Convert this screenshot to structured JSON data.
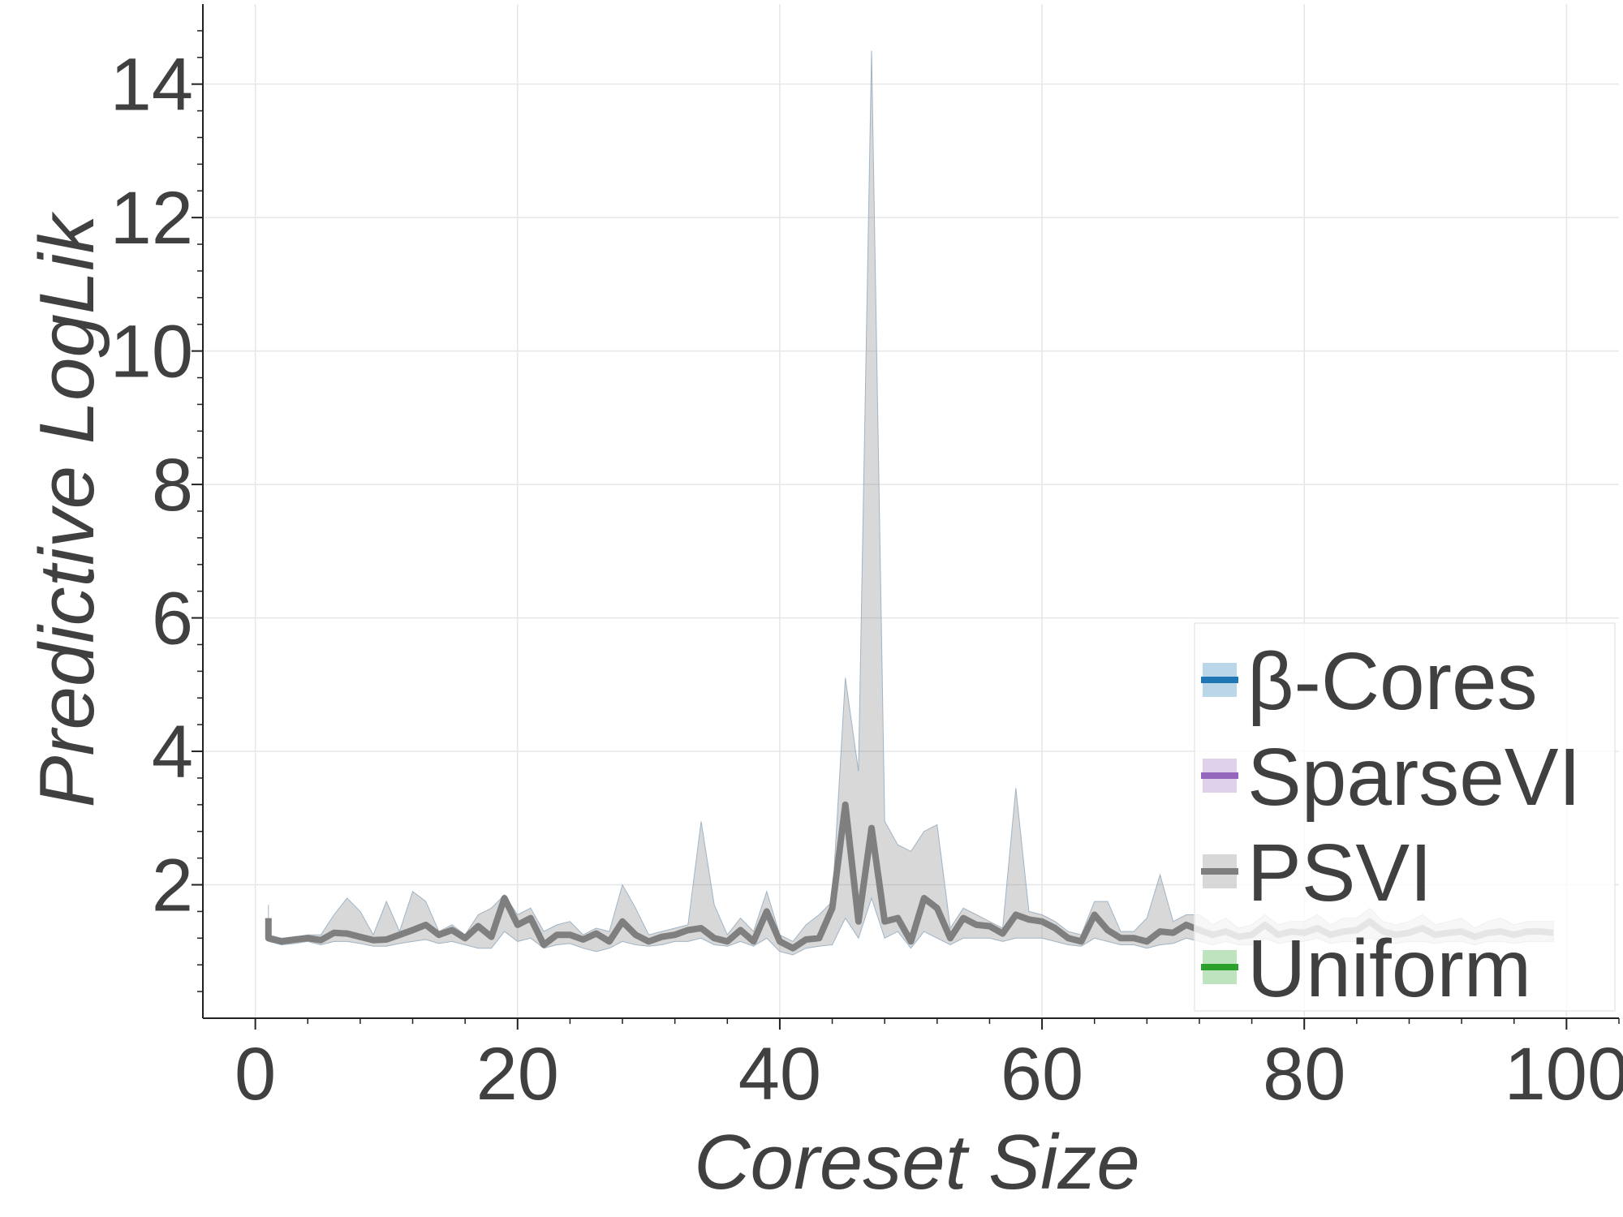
{
  "chart_data": {
    "type": "line",
    "title": "",
    "xlabel": "Coreset Size",
    "ylabel": "Predictive LogLik",
    "xlim": [
      -4,
      104
    ],
    "ylim": [
      0,
      15.2
    ],
    "xticks": [
      0,
      20,
      40,
      60,
      80,
      100
    ],
    "yticks": [
      2,
      4,
      6,
      8,
      10,
      12,
      14
    ],
    "grid": true,
    "legend_position": "lower-right",
    "series": [
      {
        "name": "β-Cores",
        "color": "#1f77b4",
        "x": [],
        "y": [],
        "lower": [],
        "upper": []
      },
      {
        "name": "SparseVI",
        "color": "#9467bd",
        "x": [],
        "y": [],
        "lower": [],
        "upper": []
      },
      {
        "name": "PSVI",
        "color": "#7f7f7f",
        "x": [
          1,
          1,
          2,
          3,
          4,
          5,
          6,
          7,
          8,
          9,
          10,
          11,
          12,
          13,
          14,
          15,
          16,
          17,
          18,
          19,
          20,
          21,
          22,
          23,
          24,
          25,
          26,
          27,
          28,
          29,
          30,
          31,
          32,
          33,
          34,
          35,
          36,
          37,
          38,
          39,
          40,
          41,
          42,
          43,
          44,
          45,
          46,
          47,
          48,
          49,
          50,
          51,
          52,
          53,
          54,
          55,
          56,
          57,
          58,
          59,
          60,
          61,
          62,
          63,
          64,
          65,
          66,
          67,
          68,
          69,
          70,
          71,
          72,
          73,
          74,
          75,
          76,
          77,
          78,
          79,
          80,
          81,
          82,
          83,
          84,
          85,
          86,
          87,
          88,
          89,
          90,
          91,
          92,
          93,
          94,
          95,
          96,
          97,
          98,
          99
        ],
        "y": [
          1.5,
          1.2,
          1.15,
          1.18,
          1.2,
          1.17,
          1.28,
          1.27,
          1.22,
          1.17,
          1.18,
          1.25,
          1.32,
          1.4,
          1.25,
          1.32,
          1.2,
          1.38,
          1.22,
          1.8,
          1.4,
          1.5,
          1.1,
          1.25,
          1.25,
          1.18,
          1.27,
          1.15,
          1.45,
          1.25,
          1.15,
          1.22,
          1.25,
          1.32,
          1.35,
          1.2,
          1.15,
          1.32,
          1.15,
          1.6,
          1.15,
          1.05,
          1.18,
          1.2,
          1.65,
          3.2,
          1.45,
          2.85,
          1.45,
          1.5,
          1.15,
          1.8,
          1.65,
          1.2,
          1.5,
          1.4,
          1.38,
          1.27,
          1.55,
          1.48,
          1.45,
          1.35,
          1.2,
          1.15,
          1.55,
          1.32,
          1.2,
          1.2,
          1.15,
          1.3,
          1.28,
          1.4,
          1.32,
          1.25,
          1.3,
          1.22,
          1.25,
          1.4,
          1.25,
          1.3,
          1.28,
          1.35,
          1.25,
          1.3,
          1.32,
          1.45,
          1.3,
          1.25,
          1.28,
          1.35,
          1.25,
          1.28,
          1.3,
          1.22,
          1.28,
          1.3,
          1.25,
          1.3,
          1.3,
          1.28
        ],
        "lower": [
          1.3,
          1.15,
          1.1,
          1.12,
          1.15,
          1.1,
          1.15,
          1.15,
          1.12,
          1.08,
          1.08,
          1.12,
          1.15,
          1.18,
          1.12,
          1.15,
          1.1,
          1.05,
          1.05,
          1.3,
          1.15,
          1.2,
          1.05,
          1.1,
          1.12,
          1.05,
          1.0,
          1.05,
          1.15,
          1.1,
          1.08,
          1.1,
          1.15,
          1.15,
          1.2,
          1.1,
          1.08,
          1.15,
          1.08,
          1.2,
          1.0,
          0.95,
          1.05,
          1.08,
          1.1,
          1.5,
          1.2,
          1.8,
          1.2,
          1.3,
          1.05,
          1.3,
          1.2,
          1.1,
          1.2,
          1.2,
          1.2,
          1.15,
          1.2,
          1.2,
          1.2,
          1.15,
          1.1,
          1.08,
          1.2,
          1.15,
          1.1,
          1.1,
          1.05,
          1.1,
          1.12,
          1.2,
          1.15,
          1.1,
          1.15,
          1.1,
          1.1,
          1.2,
          1.12,
          1.15,
          1.15,
          1.2,
          1.12,
          1.15,
          1.15,
          1.2,
          1.15,
          1.12,
          1.15,
          1.15,
          1.12,
          1.15,
          1.15,
          1.1,
          1.15,
          1.15,
          1.12,
          1.15,
          1.15,
          1.15
        ],
        "upper": [
          1.7,
          1.25,
          1.2,
          1.22,
          1.25,
          1.25,
          1.55,
          1.8,
          1.6,
          1.25,
          1.75,
          1.3,
          1.9,
          1.75,
          1.3,
          1.4,
          1.25,
          1.55,
          1.65,
          1.85,
          1.55,
          1.65,
          1.3,
          1.4,
          1.45,
          1.25,
          1.35,
          1.3,
          2.0,
          1.65,
          1.25,
          1.3,
          1.35,
          1.4,
          2.95,
          1.7,
          1.25,
          1.5,
          1.3,
          1.9,
          1.25,
          1.15,
          1.4,
          1.55,
          1.75,
          5.1,
          3.7,
          14.5,
          2.95,
          2.6,
          2.5,
          2.8,
          2.9,
          1.35,
          1.65,
          1.55,
          1.45,
          1.35,
          3.45,
          1.6,
          1.55,
          1.45,
          1.3,
          1.25,
          1.75,
          1.75,
          1.3,
          1.3,
          1.5,
          2.15,
          1.45,
          1.55,
          1.55,
          1.4,
          1.5,
          1.35,
          1.4,
          1.55,
          1.4,
          1.45,
          1.45,
          1.55,
          1.4,
          1.5,
          1.5,
          1.65,
          1.45,
          1.4,
          1.45,
          1.55,
          1.4,
          1.45,
          1.5,
          1.35,
          1.45,
          1.5,
          1.4,
          1.45,
          1.45,
          1.45
        ]
      },
      {
        "name": "Uniform",
        "color": "#2ca02c",
        "x": [],
        "y": [],
        "lower": [],
        "upper": []
      }
    ]
  }
}
